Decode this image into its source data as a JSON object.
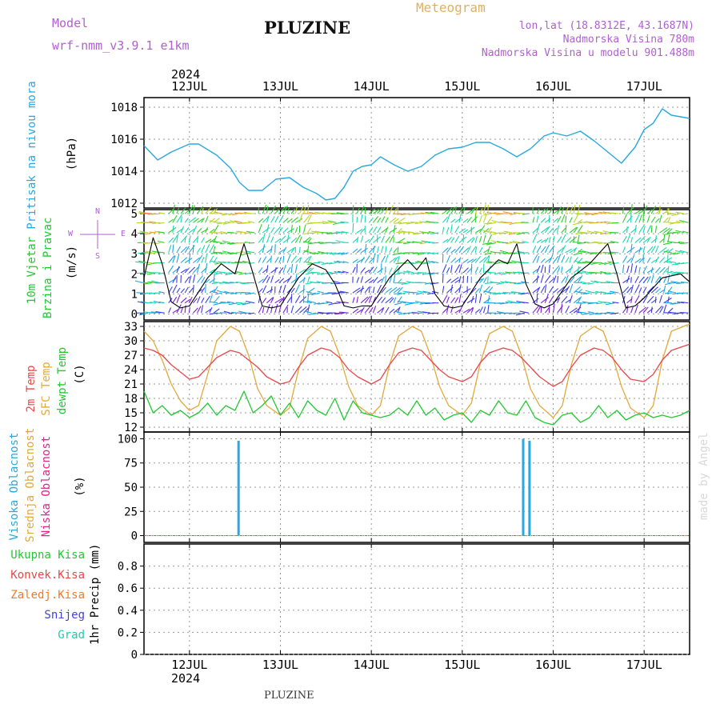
{
  "header": {
    "model_label": "Model",
    "model_name": "wrf-nmm_v3.9.1  e1km",
    "station": "PLUZINE",
    "meteogram": "Meteogram",
    "lonlat": "lon,lat (18.8312E, 43.1687N)",
    "altitude": "Nadmorska Visina 780m",
    "model_altitude": "Nadmorska Visina u modelu 901.488m",
    "footer_station": "PLUZINE",
    "credit": "made by Angel"
  },
  "time_axis": {
    "year": "2024",
    "days": [
      "12JUL",
      "13JUL",
      "14JUL",
      "15JUL",
      "16JUL",
      "17JUL"
    ]
  },
  "colors": {
    "pressure": "#29a8e0",
    "temp2m": "#e8474a",
    "sfc": "#e0a93a",
    "dew": "#22c832",
    "cloud_high": "#29a8e0",
    "cloud_mid": "#e0a93a",
    "cloud_low": "#e0248a",
    "wind_speed": "#000000",
    "gust": "#e8474a"
  },
  "panels": {
    "pressure": {
      "label": "Pritisak na nivou mora",
      "unit": "(hPa)"
    },
    "wind": {
      "label1": "10m Vjetar",
      "label2": "Brzina i Pravac",
      "unit": "(m/s)",
      "compass_n": "N",
      "compass_w": "W",
      "compass_e": "E",
      "compass_s": "S"
    },
    "temp": {
      "label1": "2m Temp",
      "label2": "SFC Temp",
      "label3": "dewpt Temp",
      "unit": "(C)"
    },
    "cloud": {
      "label1": "Visoka Oblacnost",
      "label2": "Srednja Oblacnost",
      "label3": "Niska Oblacnost",
      "unit": "(%)"
    },
    "precip": {
      "legend": [
        "Ukupna Kisa",
        "Konvek.Kisa",
        "Zaledj.Kisa",
        "Snijeg",
        "Grad"
      ],
      "legend_colors": [
        "#22c832",
        "#e8474a",
        "#f07a2a",
        "#4040e0",
        "#22c8b0"
      ],
      "unit": "1hr Precip (mm)"
    }
  },
  "chart_data": [
    {
      "type": "line",
      "title": "Pritisak na nivou mora",
      "ylabel": "(hPa)",
      "xlim": [
        11.5,
        17.5
      ],
      "ylim": [
        1011.7,
        1018.6
      ],
      "yticks": [
        1012,
        1014,
        1016,
        1018
      ],
      "grid": true,
      "series": [
        {
          "x": [
            11.5,
            11.65,
            11.8,
            12.0,
            12.1,
            12.3,
            12.45,
            12.55,
            12.65,
            12.8,
            12.95,
            13.1,
            13.25,
            13.4,
            13.5,
            13.6,
            13.7,
            13.8,
            13.9,
            14.0,
            14.1,
            14.25,
            14.4,
            14.55,
            14.7,
            14.85,
            15.0,
            15.15,
            15.3,
            15.45,
            15.6,
            15.75,
            15.9,
            16.0,
            16.15,
            16.3,
            16.45,
            16.6,
            16.75,
            16.9,
            17.0,
            17.1,
            17.2,
            17.3,
            17.5
          ],
          "y": [
            1015.6,
            1014.7,
            1015.2,
            1015.7,
            1015.7,
            1015.0,
            1014.2,
            1013.3,
            1012.8,
            1012.8,
            1013.5,
            1013.6,
            1013.0,
            1012.6,
            1012.2,
            1012.3,
            1013.0,
            1014.0,
            1014.3,
            1014.4,
            1014.9,
            1014.4,
            1014.0,
            1014.3,
            1015.0,
            1015.4,
            1015.5,
            1015.8,
            1015.8,
            1015.4,
            1014.9,
            1015.4,
            1016.2,
            1016.4,
            1016.2,
            1016.5,
            1015.9,
            1015.2,
            1014.5,
            1015.5,
            1016.6,
            1017.0,
            1017.9,
            1017.5,
            1017.3
          ]
        }
      ]
    },
    {
      "type": "line",
      "title": "10m Vjetar Brzina i Pravac",
      "ylabel": "(m/s)",
      "xlim": [
        11.5,
        17.5
      ],
      "ylim": [
        -0.3,
        5.2
      ],
      "yticks": [
        0,
        1,
        2,
        3,
        4,
        5
      ],
      "grid": true,
      "series": [
        {
          "x": [
            11.5,
            11.6,
            11.7,
            11.8,
            11.9,
            12.0,
            12.2,
            12.35,
            12.5,
            12.6,
            12.7,
            12.8,
            12.9,
            13.0,
            13.2,
            13.35,
            13.5,
            13.6,
            13.7,
            13.8,
            13.9,
            14.0,
            14.2,
            14.4,
            14.5,
            14.6,
            14.7,
            14.8,
            14.9,
            15.0,
            15.2,
            15.4,
            15.5,
            15.6,
            15.7,
            15.8,
            15.9,
            16.0,
            16.2,
            16.4,
            16.5,
            16.6,
            16.7,
            16.8,
            16.9,
            17.0,
            17.2,
            17.4,
            17.5
          ],
          "y": [
            1.8,
            3.8,
            2.5,
            0.6,
            0.3,
            0.4,
            1.8,
            2.5,
            2.0,
            3.5,
            2.0,
            0.4,
            0.3,
            0.4,
            1.8,
            2.5,
            2.2,
            1.5,
            0.4,
            0.3,
            0.4,
            0.4,
            1.8,
            2.7,
            2.2,
            2.8,
            1.0,
            0.4,
            0.3,
            0.4,
            1.8,
            2.7,
            2.5,
            3.5,
            1.5,
            0.5,
            0.3,
            0.5,
            1.8,
            2.5,
            3.0,
            3.5,
            2.0,
            0.3,
            0.4,
            0.8,
            1.8,
            2.0,
            1.6
          ]
        }
      ]
    },
    {
      "type": "line",
      "title": "2m Temp / SFC Temp / dewpt Temp",
      "ylabel": "(C)",
      "xlim": [
        11.5,
        17.5
      ],
      "ylim": [
        11,
        34
      ],
      "yticks": [
        12,
        15,
        18,
        21,
        24,
        27,
        30,
        33
      ],
      "grid": true,
      "series": [
        {
          "name": "2m Temp",
          "x": [
            11.5,
            11.6,
            11.7,
            11.8,
            11.9,
            12.0,
            12.1,
            12.2,
            12.3,
            12.45,
            12.55,
            12.65,
            12.75,
            12.85,
            13.0,
            13.1,
            13.2,
            13.3,
            13.45,
            13.55,
            13.65,
            13.75,
            13.85,
            14.0,
            14.1,
            14.2,
            14.3,
            14.45,
            14.55,
            14.65,
            14.75,
            14.85,
            15.0,
            15.1,
            15.2,
            15.3,
            15.45,
            15.55,
            15.65,
            15.75,
            15.85,
            16.0,
            16.1,
            16.2,
            16.3,
            16.45,
            16.55,
            16.65,
            16.75,
            16.85,
            17.0,
            17.1,
            17.2,
            17.3,
            17.5
          ],
          "y": [
            28.5,
            28.0,
            27.0,
            25.0,
            23.5,
            22.0,
            22.5,
            24.5,
            26.5,
            28.0,
            27.5,
            26.0,
            24.5,
            22.5,
            21.0,
            21.5,
            24.5,
            27.0,
            28.5,
            28.0,
            26.5,
            24.0,
            22.5,
            21.0,
            22.0,
            25.0,
            27.5,
            28.5,
            28.0,
            26.0,
            24.0,
            22.5,
            21.5,
            22.5,
            25.5,
            27.5,
            28.5,
            28.0,
            26.5,
            24.5,
            22.5,
            20.5,
            21.5,
            24.5,
            27.0,
            28.5,
            28.0,
            26.5,
            24.0,
            22.0,
            21.5,
            23.0,
            26.0,
            28.0,
            29.3
          ]
        },
        {
          "name": "SFC Temp",
          "x": [
            11.5,
            11.6,
            11.7,
            11.8,
            11.9,
            12.0,
            12.1,
            12.2,
            12.3,
            12.45,
            12.55,
            12.65,
            12.75,
            12.85,
            13.0,
            13.1,
            13.2,
            13.3,
            13.45,
            13.55,
            13.65,
            13.75,
            13.85,
            14.0,
            14.1,
            14.2,
            14.3,
            14.45,
            14.55,
            14.65,
            14.75,
            14.85,
            15.0,
            15.1,
            15.2,
            15.3,
            15.45,
            15.55,
            15.65,
            15.75,
            15.85,
            16.0,
            16.1,
            16.2,
            16.3,
            16.45,
            16.55,
            16.65,
            16.75,
            16.85,
            17.0,
            17.1,
            17.2,
            17.3,
            17.5
          ],
          "y": [
            32.0,
            30.0,
            26.0,
            21.0,
            17.5,
            15.5,
            16.5,
            23.0,
            30.0,
            33.0,
            32.0,
            27.0,
            20.0,
            16.5,
            14.5,
            16.0,
            24.0,
            30.5,
            33.0,
            32.0,
            27.0,
            20.5,
            16.5,
            14.5,
            16.5,
            25.0,
            31.0,
            33.0,
            32.0,
            27.0,
            20.5,
            16.5,
            14.5,
            17.0,
            25.5,
            31.5,
            33.0,
            32.0,
            27.0,
            20.0,
            16.5,
            14.0,
            16.5,
            25.0,
            31.0,
            33.0,
            32.0,
            27.0,
            20.5,
            16.0,
            14.0,
            16.5,
            26.0,
            32.0,
            33.5
          ]
        },
        {
          "name": "dewpt Temp",
          "x": [
            11.5,
            11.6,
            11.7,
            11.8,
            11.9,
            12.0,
            12.1,
            12.2,
            12.3,
            12.4,
            12.5,
            12.6,
            12.7,
            12.8,
            12.9,
            13.0,
            13.1,
            13.2,
            13.3,
            13.4,
            13.5,
            13.6,
            13.7,
            13.8,
            13.9,
            14.0,
            14.1,
            14.2,
            14.3,
            14.4,
            14.5,
            14.6,
            14.7,
            14.8,
            14.9,
            15.0,
            15.1,
            15.2,
            15.3,
            15.4,
            15.5,
            15.6,
            15.7,
            15.8,
            15.9,
            16.0,
            16.1,
            16.2,
            16.3,
            16.4,
            16.5,
            16.6,
            16.7,
            16.8,
            16.9,
            17.0,
            17.1,
            17.2,
            17.3,
            17.4,
            17.5
          ],
          "y": [
            19.5,
            15.0,
            16.5,
            14.5,
            15.5,
            14.0,
            15.0,
            17.0,
            14.5,
            16.5,
            15.5,
            19.5,
            15.0,
            16.5,
            18.5,
            14.5,
            17.0,
            14.0,
            17.5,
            15.5,
            14.5,
            18.0,
            13.5,
            17.5,
            15.0,
            14.5,
            14.0,
            14.5,
            16.0,
            14.5,
            17.5,
            14.5,
            16.0,
            13.5,
            14.5,
            15.0,
            13.0,
            15.5,
            14.5,
            17.5,
            15.0,
            14.5,
            17.5,
            14.0,
            13.0,
            12.5,
            14.5,
            15.0,
            13.0,
            14.0,
            16.5,
            14.0,
            15.5,
            13.5,
            14.5,
            15.0,
            14.0,
            14.5,
            14.0,
            14.5,
            15.5
          ]
        }
      ]
    },
    {
      "type": "bar",
      "title": "Visoka / Srednja / Niska Oblacnost",
      "ylabel": "(%)",
      "xlim": [
        11.5,
        17.5
      ],
      "ylim": [
        -7,
        107
      ],
      "yticks": [
        0,
        25,
        50,
        75,
        100
      ],
      "grid": true,
      "series": [
        {
          "name": "Visoka Oblacnost",
          "x": [
            12.54,
            15.67,
            15.74
          ],
          "values": [
            98,
            100,
            98
          ]
        },
        {
          "name": "Srednja Oblacnost",
          "x": [],
          "values": []
        },
        {
          "name": "Niska Oblacnost",
          "x": [],
          "values": []
        }
      ]
    },
    {
      "type": "bar",
      "title": "1hr Precip",
      "ylabel": "1hr Precip (mm)",
      "xlim": [
        11.5,
        17.5
      ],
      "ylim": [
        0,
        1.0
      ],
      "yticks": [
        0,
        0.2,
        0.4,
        0.6,
        0.8
      ],
      "grid": true,
      "series": [
        {
          "name": "Ukupna Kisa",
          "x": [],
          "values": []
        }
      ]
    }
  ]
}
